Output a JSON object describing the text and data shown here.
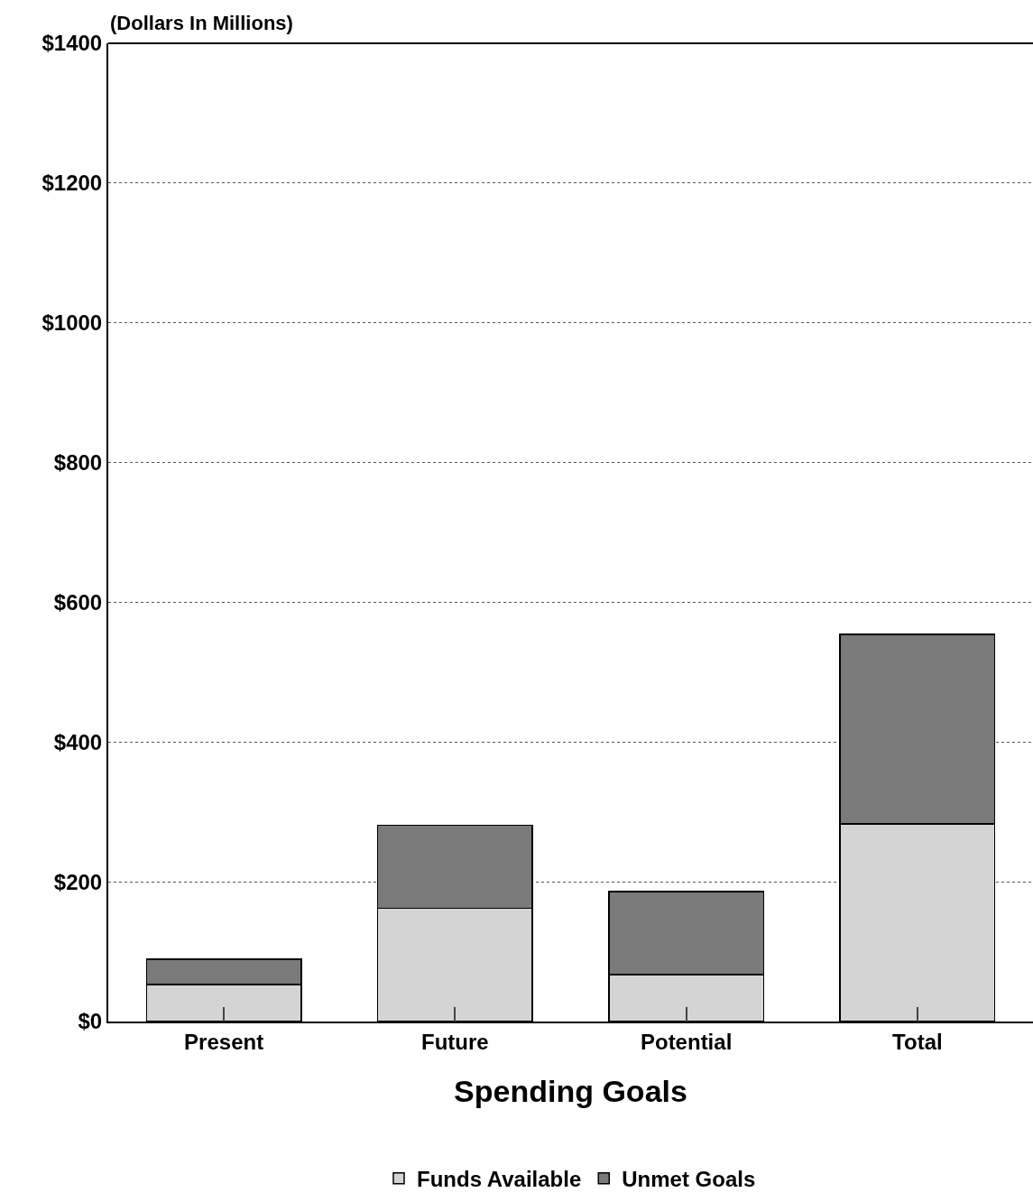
{
  "chart_data": {
    "type": "bar",
    "stacked": true,
    "ylabel": "(Dollars In Millions)",
    "xlabel": "Spending Goals",
    "categories": [
      "Present",
      "Future",
      "Potential",
      "Total"
    ],
    "series": [
      {
        "name": "Funds Available",
        "color": "#d4d4d4",
        "values": [
          53,
          162,
          67,
          283
        ]
      },
      {
        "name": "Unmet Goals",
        "color": "#7a7a7a",
        "values": [
          36,
          119,
          119,
          271
        ]
      }
    ],
    "ylim": [
      0,
      1400
    ],
    "yticks": [
      {
        "value": 0,
        "label": "$0"
      },
      {
        "value": 200,
        "label": "$200"
      },
      {
        "value": 400,
        "label": "$400"
      },
      {
        "value": 600,
        "label": "$600"
      },
      {
        "value": 800,
        "label": "$800"
      },
      {
        "value": 1000,
        "label": "$1000"
      },
      {
        "value": 1200,
        "label": "$1200"
      },
      {
        "value": 1400,
        "label": "$1400"
      }
    ],
    "grid": "y",
    "legend": "bottom"
  }
}
